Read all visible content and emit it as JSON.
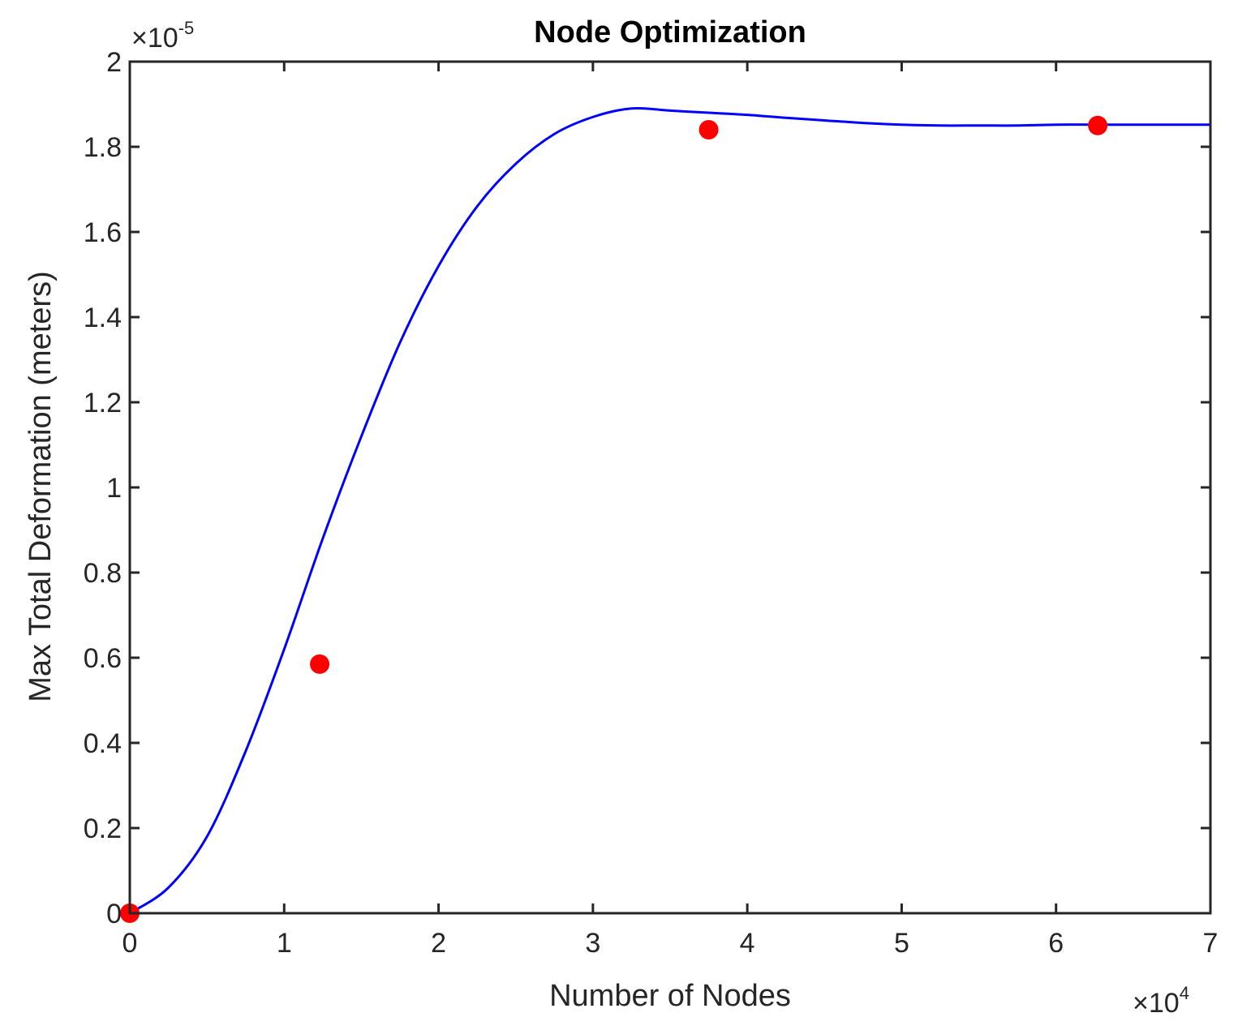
{
  "chart_data": {
    "type": "line",
    "title": "Node Optimization",
    "xlabel": "Number of Nodes",
    "ylabel": "Max Total Deformation (meters)",
    "x_multiplier": {
      "base": "×10",
      "exponent": "4"
    },
    "y_multiplier": {
      "base": "×10",
      "exponent": "-5"
    },
    "xlim": [
      0,
      7
    ],
    "ylim": [
      0,
      2
    ],
    "xticks": [
      "0",
      "1",
      "2",
      "3",
      "4",
      "5",
      "6",
      "7"
    ],
    "yticks": [
      "0",
      "0.2",
      "0.4",
      "0.6",
      "0.8",
      "1",
      "1.2",
      "1.4",
      "1.6",
      "1.8",
      "2"
    ],
    "grid": false,
    "series": [
      {
        "kind": "line",
        "color": "#0000ff",
        "x": [
          0,
          0.25,
          0.5,
          0.75,
          1.0,
          1.25,
          1.5,
          1.75,
          2.0,
          2.25,
          2.5,
          2.75,
          3.0,
          3.25,
          3.5,
          3.75,
          4.0,
          4.25,
          4.5,
          4.75,
          5.0,
          5.25,
          5.5,
          5.75,
          6.0,
          6.25,
          6.5,
          6.75,
          7.0
        ],
        "y": [
          0,
          0.06,
          0.18,
          0.38,
          0.62,
          0.88,
          1.12,
          1.34,
          1.52,
          1.66,
          1.76,
          1.83,
          1.87,
          1.89,
          1.885,
          1.88,
          1.875,
          1.868,
          1.862,
          1.856,
          1.852,
          1.85,
          1.85,
          1.85,
          1.852,
          1.852,
          1.852,
          1.852,
          1.852
        ]
      },
      {
        "kind": "scatter",
        "color": "#ff0000",
        "x": [
          0,
          1.23,
          3.75,
          6.27
        ],
        "y": [
          0,
          0.585,
          1.84,
          1.85
        ]
      }
    ]
  }
}
